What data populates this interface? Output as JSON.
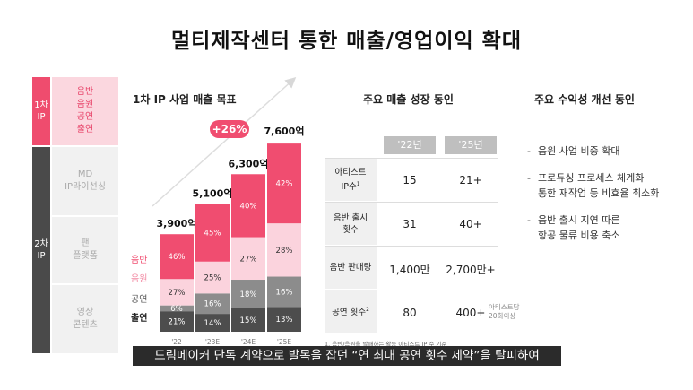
{
  "title": "멀티제작센터 통한 매출/영업이익 확대",
  "left_panel": {
    "ip1_label": "1차\nIP",
    "ip1_items": "음반\n음원\n공연\n출연",
    "ip2_label": "2차\nIP",
    "ip2_items": [
      "MD\nIP라이선싱",
      "팬\n플랫폼",
      "영상\n콘텐츠"
    ]
  },
  "chart_data": {
    "type": "bar",
    "title": "1차 IP 사업 매출 목표",
    "categories": [
      "'22",
      "'23E",
      "'24E",
      "'25E"
    ],
    "totals": [
      "3,900억",
      "5,100억",
      "6,300억",
      "7,600억"
    ],
    "total_values": [
      3900,
      5100,
      6300,
      7600
    ],
    "series": [
      {
        "name": "출연",
        "values": [
          21,
          14,
          15,
          13
        ],
        "color": "#4d4d4d"
      },
      {
        "name": "공연",
        "values": [
          6,
          16,
          18,
          16
        ],
        "color": "#8c8c8c"
      },
      {
        "name": "음원",
        "values": [
          27,
          25,
          27,
          28
        ],
        "color": "#fbd3dd"
      },
      {
        "name": "음반",
        "values": [
          46,
          45,
          40,
          42
        ],
        "color": "#f04d70"
      }
    ],
    "growth_badge": "+26%",
    "legend_order": [
      "음반",
      "음원",
      "공연",
      "출연"
    ]
  },
  "growth_table": {
    "heading": "주요 매출 성장 동인",
    "col_headers": [
      "'22년",
      "'25년"
    ],
    "rows": [
      {
        "label": "아티스트\nIP수",
        "sup": "1",
        "v22": "15",
        "v25": "21+",
        "note": ""
      },
      {
        "label": "음반 출시\n횟수",
        "sup": "",
        "v22": "31",
        "v25": "40+",
        "note": ""
      },
      {
        "label": "음반 판매량",
        "sup": "",
        "v22": "1,400만",
        "v25": "2,700만+",
        "note": ""
      },
      {
        "label": "공연 횟수",
        "sup": "2",
        "v22": "80",
        "v25": "400+",
        "note": "아티스트당\n20회이상"
      }
    ],
    "footnote": "1. 음반/음원을 발매하는 활동 아티스트 IP 수 기준"
  },
  "profit": {
    "heading": "주요 수익성 개선 동인",
    "bullets": [
      "음원 사업 비중 확대",
      "프로듀싱 프로세스 체계화\n통한 재작업 등 비효율 최소화",
      "음반 출시 지연 따른\n항공 물류 비용 축소"
    ]
  },
  "subtitle": "드림메이커 단독 계약으로 발목을 잡던 “연 최대 공연 횟수 제약”을 탈피하여",
  "colors": {
    "accent": "#f04d70",
    "dark": "#4a4a4a",
    "light_pink": "#fbd7df"
  }
}
